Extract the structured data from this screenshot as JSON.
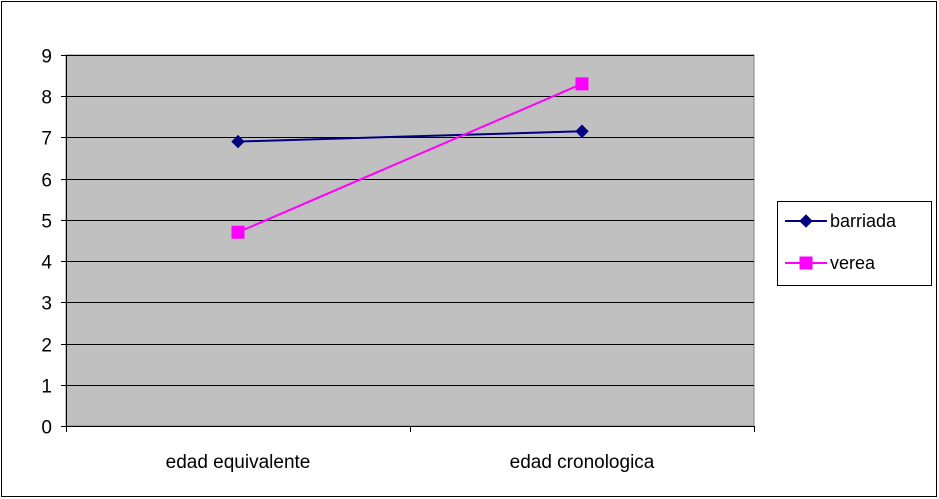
{
  "chart_data": {
    "type": "line",
    "categories": [
      "edad equivalente",
      "edad cronologica"
    ],
    "series": [
      {
        "name": "barriada",
        "values": [
          6.9,
          7.15
        ],
        "color": "#000080",
        "marker": "diamond"
      },
      {
        "name": "verea",
        "values": [
          4.7,
          8.3
        ],
        "color": "#FF00FF",
        "marker": "square"
      }
    ],
    "ylim": [
      0,
      9
    ],
    "yticks": [
      0,
      1,
      2,
      3,
      4,
      5,
      6,
      7,
      8,
      9
    ],
    "grid": true,
    "plot_background": "#C0C0C0",
    "legend_position": "right",
    "title": "",
    "xlabel": "",
    "ylabel": ""
  }
}
